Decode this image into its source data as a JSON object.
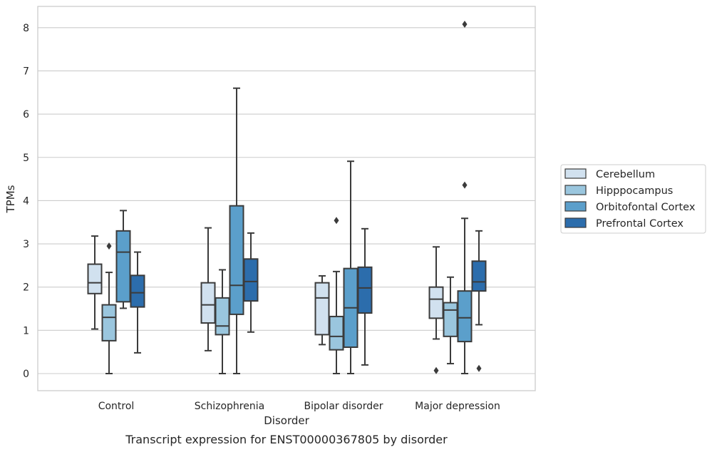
{
  "caption": "Transcript expression for ENST00000367805 by disorder",
  "chart_data": {
    "type": "box",
    "title": "",
    "xlabel": "Disorder",
    "ylabel": "TPMs",
    "ylim": [
      -0.4,
      8.5
    ],
    "yticks": [
      0,
      1,
      2,
      3,
      4,
      5,
      6,
      7,
      8
    ],
    "grid": true,
    "legend_position": "right",
    "categories": [
      "Control",
      "Schizophrenia",
      "Bipolar disorder",
      "Major depression"
    ],
    "series": [
      {
        "name": "Cerebellum",
        "color": "#d1e1ef",
        "boxes": [
          {
            "whisker_low": 1.03,
            "q1": 1.85,
            "median": 2.1,
            "q3": 2.53,
            "whisker_high": 3.18,
            "outliers": []
          },
          {
            "whisker_low": 0.53,
            "q1": 1.17,
            "median": 1.59,
            "q3": 2.1,
            "whisker_high": 3.37,
            "outliers": []
          },
          {
            "whisker_low": 0.67,
            "q1": 0.9,
            "median": 1.75,
            "q3": 2.1,
            "whisker_high": 2.26,
            "outliers": []
          },
          {
            "whisker_low": 0.8,
            "q1": 1.28,
            "median": 1.72,
            "q3": 2.0,
            "whisker_high": 2.93,
            "outliers": [
              0.07
            ]
          }
        ]
      },
      {
        "name": "Hipppocampus",
        "color": "#9ac6de",
        "boxes": [
          {
            "whisker_low": 0.0,
            "q1": 0.76,
            "median": 1.3,
            "q3": 1.59,
            "whisker_high": 2.34,
            "outliers": [
              2.95
            ]
          },
          {
            "whisker_low": 0.0,
            "q1": 0.9,
            "median": 1.1,
            "q3": 1.75,
            "whisker_high": 2.4,
            "outliers": []
          },
          {
            "whisker_low": 0.0,
            "q1": 0.55,
            "median": 0.86,
            "q3": 1.32,
            "whisker_high": 2.36,
            "outliers": [
              3.54
            ]
          },
          {
            "whisker_low": 0.23,
            "q1": 0.86,
            "median": 1.47,
            "q3": 1.64,
            "whisker_high": 2.23,
            "outliers": []
          }
        ]
      },
      {
        "name": "Orbitofontal Cortex",
        "color": "#5b9fcb",
        "boxes": [
          {
            "whisker_low": 1.51,
            "q1": 1.66,
            "median": 2.81,
            "q3": 3.3,
            "whisker_high": 3.77,
            "outliers": []
          },
          {
            "whisker_low": 0.0,
            "q1": 1.37,
            "median": 2.04,
            "q3": 3.88,
            "whisker_high": 6.6,
            "outliers": []
          },
          {
            "whisker_low": 0.0,
            "q1": 0.61,
            "median": 1.52,
            "q3": 2.43,
            "whisker_high": 4.91,
            "outliers": []
          },
          {
            "whisker_low": 0.0,
            "q1": 0.74,
            "median": 1.29,
            "q3": 1.91,
            "whisker_high": 3.59,
            "outliers": [
              4.36,
              8.08
            ]
          }
        ]
      },
      {
        "name": "Prefrontal Cortex",
        "color": "#2c6dac",
        "boxes": [
          {
            "whisker_low": 0.48,
            "q1": 1.54,
            "median": 1.87,
            "q3": 2.27,
            "whisker_high": 2.81,
            "outliers": []
          },
          {
            "whisker_low": 0.96,
            "q1": 1.68,
            "median": 2.13,
            "q3": 2.65,
            "whisker_high": 3.25,
            "outliers": []
          },
          {
            "whisker_low": 0.2,
            "q1": 1.4,
            "median": 1.98,
            "q3": 2.46,
            "whisker_high": 3.35,
            "outliers": []
          },
          {
            "whisker_low": 1.13,
            "q1": 1.91,
            "median": 2.12,
            "q3": 2.6,
            "whisker_high": 3.3,
            "outliers": [
              0.12
            ]
          }
        ]
      }
    ]
  }
}
